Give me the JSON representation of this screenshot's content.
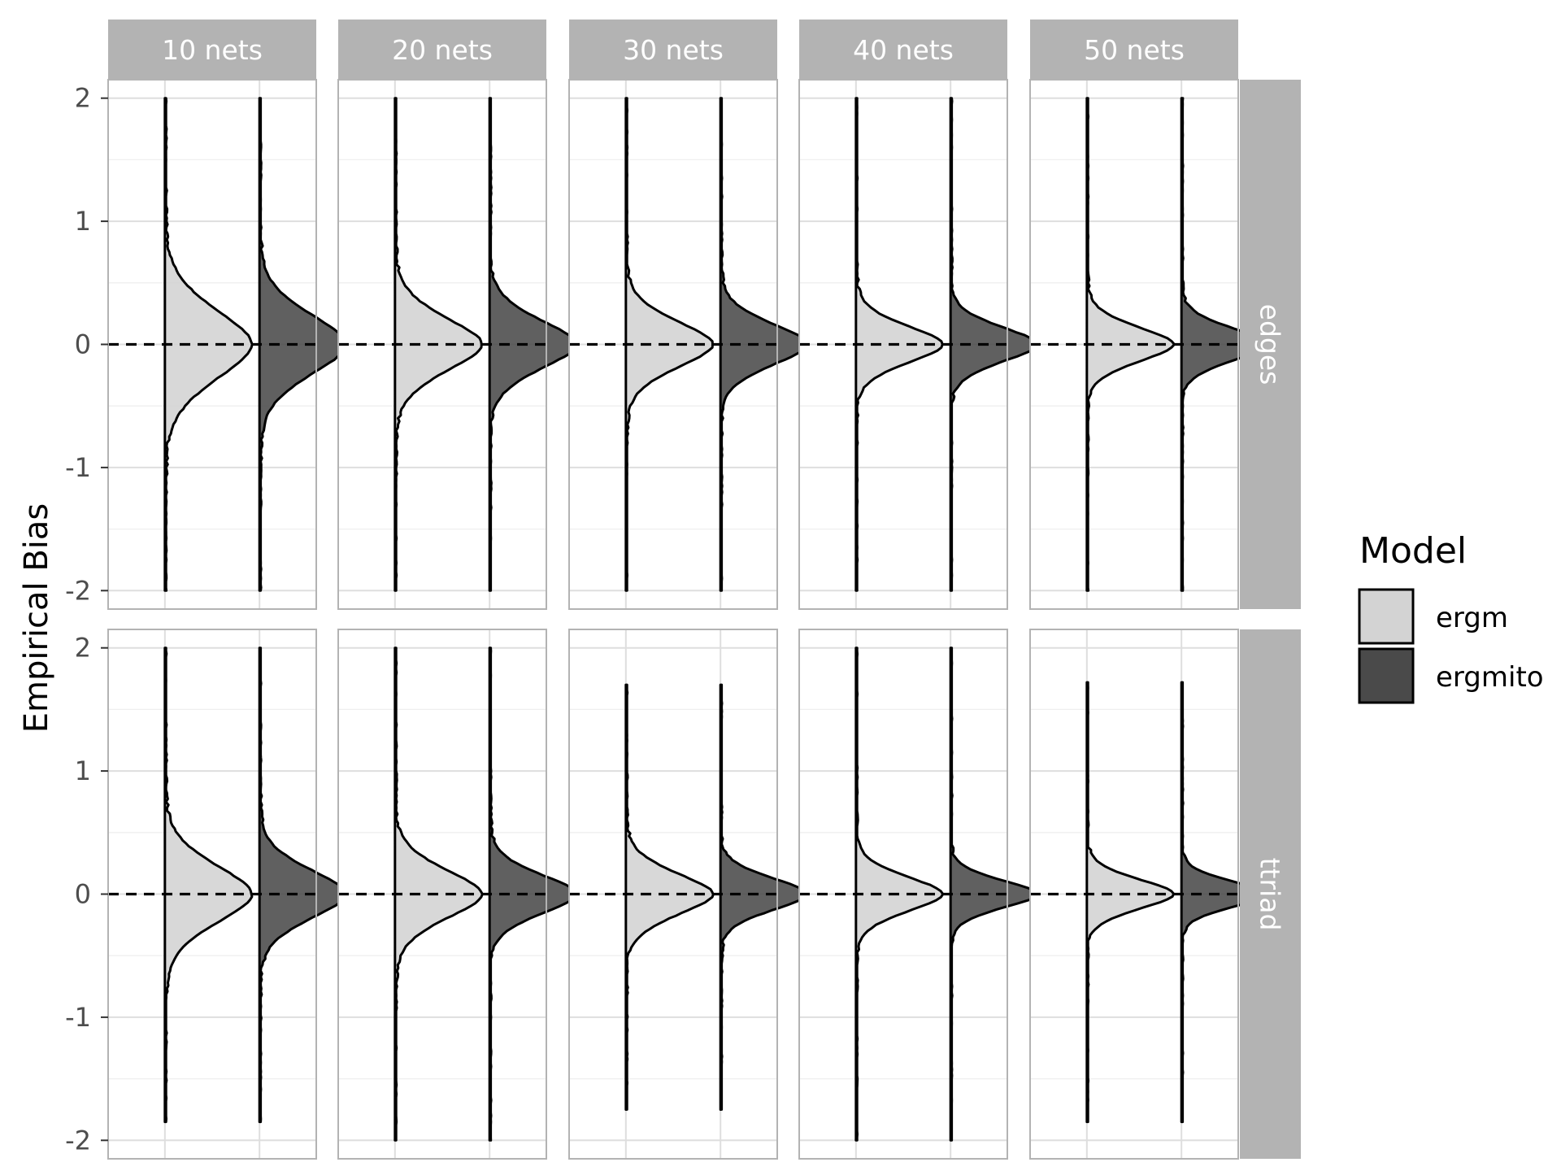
{
  "chart_data": {
    "type": "violin",
    "subtype": "faceted half-violin density plot",
    "ylabel": "Empirical Bias",
    "xlabel": "",
    "ylim": [
      -2.15,
      2.15
    ],
    "y_ticks": [
      2,
      1,
      0,
      -1,
      -2
    ],
    "reference_line": {
      "y": 0,
      "style": "dashed",
      "color": "#000000"
    },
    "grid": true,
    "legend": {
      "title": "Model",
      "position": "right",
      "items": [
        {
          "label": "ergm",
          "color": "#d3d3d3"
        },
        {
          "label": "ergmito",
          "color": "#4a4a4a"
        }
      ]
    },
    "col_facets": [
      "10 nets",
      "20 nets",
      "30 nets",
      "40 nets",
      "50 nets"
    ],
    "row_facets": [
      "edges",
      "ttriad"
    ],
    "series": [
      {
        "name": "ergm",
        "color": "#d3d3d3"
      },
      {
        "name": "ergmito",
        "color": "#4a4a4a"
      }
    ],
    "panels": [
      {
        "row": "edges",
        "col": "10 nets",
        "ergm": {
          "range": [
            -2.0,
            2.0
          ],
          "peak_width": 0.92,
          "sd": 0.3
        },
        "ergmito": {
          "range": [
            -2.0,
            2.0
          ],
          "peak_width": 0.92,
          "sd": 0.26
        }
      },
      {
        "row": "edges",
        "col": "20 nets",
        "ergm": {
          "range": [
            -2.0,
            2.0
          ],
          "peak_width": 0.92,
          "sd": 0.23
        },
        "ergmito": {
          "range": [
            -2.0,
            2.0
          ],
          "peak_width": 0.92,
          "sd": 0.21
        }
      },
      {
        "row": "edges",
        "col": "30 nets",
        "ergm": {
          "range": [
            -2.0,
            2.0
          ],
          "peak_width": 0.92,
          "sd": 0.2
        },
        "ergmito": {
          "range": [
            -2.0,
            2.0
          ],
          "peak_width": 0.92,
          "sd": 0.18
        }
      },
      {
        "row": "edges",
        "col": "40 nets",
        "ergm": {
          "range": [
            -2.0,
            2.0
          ],
          "peak_width": 0.92,
          "sd": 0.16
        },
        "ergmito": {
          "range": [
            -2.0,
            2.0
          ],
          "peak_width": 0.92,
          "sd": 0.15
        }
      },
      {
        "row": "edges",
        "col": "50 nets",
        "ergm": {
          "range": [
            -2.0,
            2.0
          ],
          "peak_width": 0.92,
          "sd": 0.15
        },
        "ergmito": {
          "range": [
            -2.0,
            2.0
          ],
          "peak_width": 0.92,
          "sd": 0.14
        }
      },
      {
        "row": "ttriad",
        "col": "10 nets",
        "ergm": {
          "range": [
            -1.85,
            2.0
          ],
          "peak_width": 0.92,
          "sd": 0.25
        },
        "ergmito": {
          "range": [
            -1.85,
            2.0
          ],
          "peak_width": 0.92,
          "sd": 0.21
        }
      },
      {
        "row": "ttriad",
        "col": "20 nets",
        "ergm": {
          "range": [
            -2.0,
            2.0
          ],
          "peak_width": 0.92,
          "sd": 0.21
        },
        "ergmito": {
          "range": [
            -2.0,
            2.0
          ],
          "peak_width": 0.92,
          "sd": 0.17
        }
      },
      {
        "row": "ttriad",
        "col": "30 nets",
        "ergm": {
          "range": [
            -1.75,
            1.7
          ],
          "peak_width": 0.92,
          "sd": 0.18
        },
        "ergmito": {
          "range": [
            -1.75,
            1.7
          ],
          "peak_width": 0.92,
          "sd": 0.14
        }
      },
      {
        "row": "ttriad",
        "col": "40 nets",
        "ergm": {
          "range": [
            -2.0,
            2.0
          ],
          "peak_width": 0.92,
          "sd": 0.15
        },
        "ergmito": {
          "range": [
            -2.0,
            2.0
          ],
          "peak_width": 0.92,
          "sd": 0.12
        }
      },
      {
        "row": "ttriad",
        "col": "50 nets",
        "ergm": {
          "range": [
            -1.85,
            1.72
          ],
          "peak_width": 0.92,
          "sd": 0.13
        },
        "ergmito": {
          "range": [
            -1.85,
            1.72
          ],
          "peak_width": 0.92,
          "sd": 0.11
        }
      }
    ]
  }
}
